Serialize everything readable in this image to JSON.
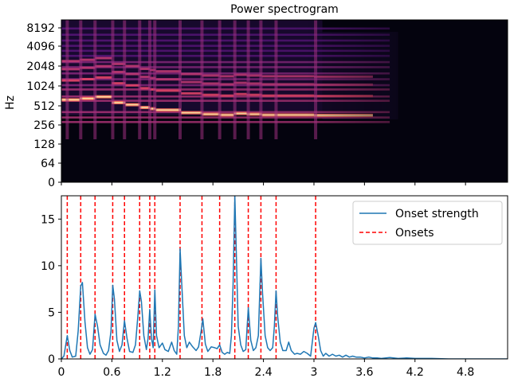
{
  "chart_data": [
    {
      "type": "heatmap",
      "title": "Power spectrogram",
      "ylabel": "Hz",
      "yticks": [
        "0",
        "64",
        "128",
        "256",
        "512",
        "1024",
        "2048",
        "4096",
        "8192"
      ],
      "xlim": [
        0,
        5.3
      ],
      "colormap": "magma",
      "harmonic_bands_hz": [
        280,
        330,
        400,
        600,
        700,
        900,
        1050,
        1300,
        1600,
        2000,
        2400,
        3000,
        3600,
        4300,
        5200,
        6400,
        8000
      ],
      "note_segments": [
        {
          "start": 0.0,
          "end": 0.22,
          "f0": 620
        },
        {
          "start": 0.22,
          "end": 0.4,
          "f0": 650
        },
        {
          "start": 0.4,
          "end": 0.6,
          "f0": 690
        },
        {
          "start": 0.6,
          "end": 0.76,
          "f0": 560
        },
        {
          "start": 0.76,
          "end": 0.93,
          "f0": 520
        },
        {
          "start": 0.93,
          "end": 1.05,
          "f0": 470
        },
        {
          "start": 1.05,
          "end": 1.12,
          "f0": 450
        },
        {
          "start": 1.12,
          "end": 1.42,
          "f0": 430
        },
        {
          "start": 1.42,
          "end": 1.67,
          "f0": 390
        },
        {
          "start": 1.67,
          "end": 1.88,
          "f0": 370
        },
        {
          "start": 1.88,
          "end": 2.05,
          "f0": 360
        },
        {
          "start": 2.05,
          "end": 2.2,
          "f0": 380
        },
        {
          "start": 2.2,
          "end": 2.38,
          "f0": 370
        },
        {
          "start": 2.38,
          "end": 2.55,
          "f0": 360
        },
        {
          "start": 2.55,
          "end": 3.0,
          "f0": 360
        },
        {
          "start": 3.0,
          "end": 3.7,
          "f0": 355
        }
      ]
    },
    {
      "type": "line",
      "xlim": [
        0,
        5.3
      ],
      "ylim": [
        0,
        17.5
      ],
      "xticks": [
        "0",
        "0.6",
        "1.2",
        "1.8",
        "2.4",
        "3",
        "3.6",
        "4.2",
        "4.8"
      ],
      "yticks": [
        "0",
        "5",
        "10",
        "15"
      ],
      "legend_position": "top-right",
      "series": [
        {
          "name": "Onset strength",
          "color": "#1f77b4",
          "points": [
            [
              0.0,
              0.0
            ],
            [
              0.03,
              0.3
            ],
            [
              0.07,
              2.5
            ],
            [
              0.1,
              0.9
            ],
            [
              0.13,
              0.2
            ],
            [
              0.17,
              0.3
            ],
            [
              0.2,
              3.0
            ],
            [
              0.23,
              7.8
            ],
            [
              0.25,
              8.2
            ],
            [
              0.28,
              4.0
            ],
            [
              0.31,
              1.2
            ],
            [
              0.34,
              0.5
            ],
            [
              0.37,
              1.0
            ],
            [
              0.4,
              4.8
            ],
            [
              0.43,
              3.5
            ],
            [
              0.46,
              1.5
            ],
            [
              0.5,
              0.6
            ],
            [
              0.53,
              0.4
            ],
            [
              0.56,
              0.9
            ],
            [
              0.59,
              3.0
            ],
            [
              0.61,
              7.9
            ],
            [
              0.63,
              6.4
            ],
            [
              0.66,
              2.0
            ],
            [
              0.69,
              0.8
            ],
            [
              0.72,
              1.5
            ],
            [
              0.75,
              4.1
            ],
            [
              0.78,
              2.2
            ],
            [
              0.81,
              0.8
            ],
            [
              0.85,
              0.7
            ],
            [
              0.88,
              1.5
            ],
            [
              0.91,
              4.8
            ],
            [
              0.93,
              7.3
            ],
            [
              0.95,
              6.2
            ],
            [
              0.98,
              2.5
            ],
            [
              1.01,
              1.0
            ],
            [
              1.03,
              2.2
            ],
            [
              1.05,
              5.3
            ],
            [
              1.07,
              2.2
            ],
            [
              1.09,
              1.2
            ],
            [
              1.11,
              7.4
            ],
            [
              1.13,
              2.5
            ],
            [
              1.16,
              1.2
            ],
            [
              1.2,
              1.7
            ],
            [
              1.23,
              1.0
            ],
            [
              1.27,
              0.8
            ],
            [
              1.31,
              1.8
            ],
            [
              1.34,
              0.9
            ],
            [
              1.37,
              0.5
            ],
            [
              1.39,
              3.5
            ],
            [
              1.41,
              11.8
            ],
            [
              1.43,
              8.0
            ],
            [
              1.46,
              2.5
            ],
            [
              1.49,
              1.2
            ],
            [
              1.52,
              1.8
            ],
            [
              1.56,
              1.3
            ],
            [
              1.6,
              0.9
            ],
            [
              1.63,
              1.3
            ],
            [
              1.66,
              3.0
            ],
            [
              1.68,
              4.3
            ],
            [
              1.71,
              1.6
            ],
            [
              1.74,
              0.8
            ],
            [
              1.78,
              1.3
            ],
            [
              1.82,
              1.2
            ],
            [
              1.85,
              1.1
            ],
            [
              1.88,
              1.5
            ],
            [
              1.91,
              0.7
            ],
            [
              1.94,
              0.5
            ],
            [
              1.97,
              0.7
            ],
            [
              2.0,
              0.6
            ],
            [
              2.02,
              2.5
            ],
            [
              2.04,
              8.0
            ],
            [
              2.06,
              17.5
            ],
            [
              2.08,
              10.5
            ],
            [
              2.1,
              3.5
            ],
            [
              2.13,
              1.5
            ],
            [
              2.16,
              0.8
            ],
            [
              2.19,
              1.0
            ],
            [
              2.22,
              5.5
            ],
            [
              2.25,
              2.0
            ],
            [
              2.28,
              0.9
            ],
            [
              2.31,
              1.2
            ],
            [
              2.34,
              2.5
            ],
            [
              2.37,
              10.8
            ],
            [
              2.39,
              7.0
            ],
            [
              2.42,
              2.5
            ],
            [
              2.45,
              1.2
            ],
            [
              2.48,
              0.9
            ],
            [
              2.51,
              1.2
            ],
            [
              2.53,
              3.5
            ],
            [
              2.55,
              7.3
            ],
            [
              2.57,
              4.5
            ],
            [
              2.6,
              1.8
            ],
            [
              2.63,
              0.9
            ],
            [
              2.67,
              0.9
            ],
            [
              2.7,
              1.8
            ],
            [
              2.73,
              0.9
            ],
            [
              2.77,
              0.5
            ],
            [
              2.8,
              0.6
            ],
            [
              2.84,
              0.5
            ],
            [
              2.88,
              0.8
            ],
            [
              2.92,
              0.6
            ],
            [
              2.96,
              0.3
            ],
            [
              3.0,
              3.3
            ],
            [
              3.02,
              3.9
            ],
            [
              3.05,
              2.5
            ],
            [
              3.08,
              0.9
            ],
            [
              3.11,
              0.3
            ],
            [
              3.14,
              0.6
            ],
            [
              3.18,
              0.3
            ],
            [
              3.22,
              0.5
            ],
            [
              3.26,
              0.3
            ],
            [
              3.3,
              0.4
            ],
            [
              3.34,
              0.2
            ],
            [
              3.38,
              0.4
            ],
            [
              3.42,
              0.2
            ],
            [
              3.46,
              0.3
            ],
            [
              3.5,
              0.2
            ],
            [
              3.55,
              0.2
            ],
            [
              3.6,
              0.1
            ],
            [
              3.65,
              0.2
            ],
            [
              3.7,
              0.1
            ],
            [
              3.75,
              0.1
            ],
            [
              3.8,
              0.05
            ],
            [
              3.9,
              0.15
            ],
            [
              4.0,
              0.05
            ],
            [
              4.1,
              0.1
            ],
            [
              4.2,
              0.05
            ],
            [
              4.4,
              0.05
            ],
            [
              4.6,
              0.0
            ],
            [
              5.3,
              0.0
            ]
          ]
        },
        {
          "name": "Onsets",
          "color": "#ff0000",
          "style": "dashed",
          "x": [
            0.07,
            0.23,
            0.4,
            0.61,
            0.75,
            0.93,
            1.05,
            1.11,
            1.41,
            1.67,
            1.88,
            2.06,
            2.22,
            2.37,
            2.55,
            3.02
          ]
        }
      ]
    }
  ]
}
